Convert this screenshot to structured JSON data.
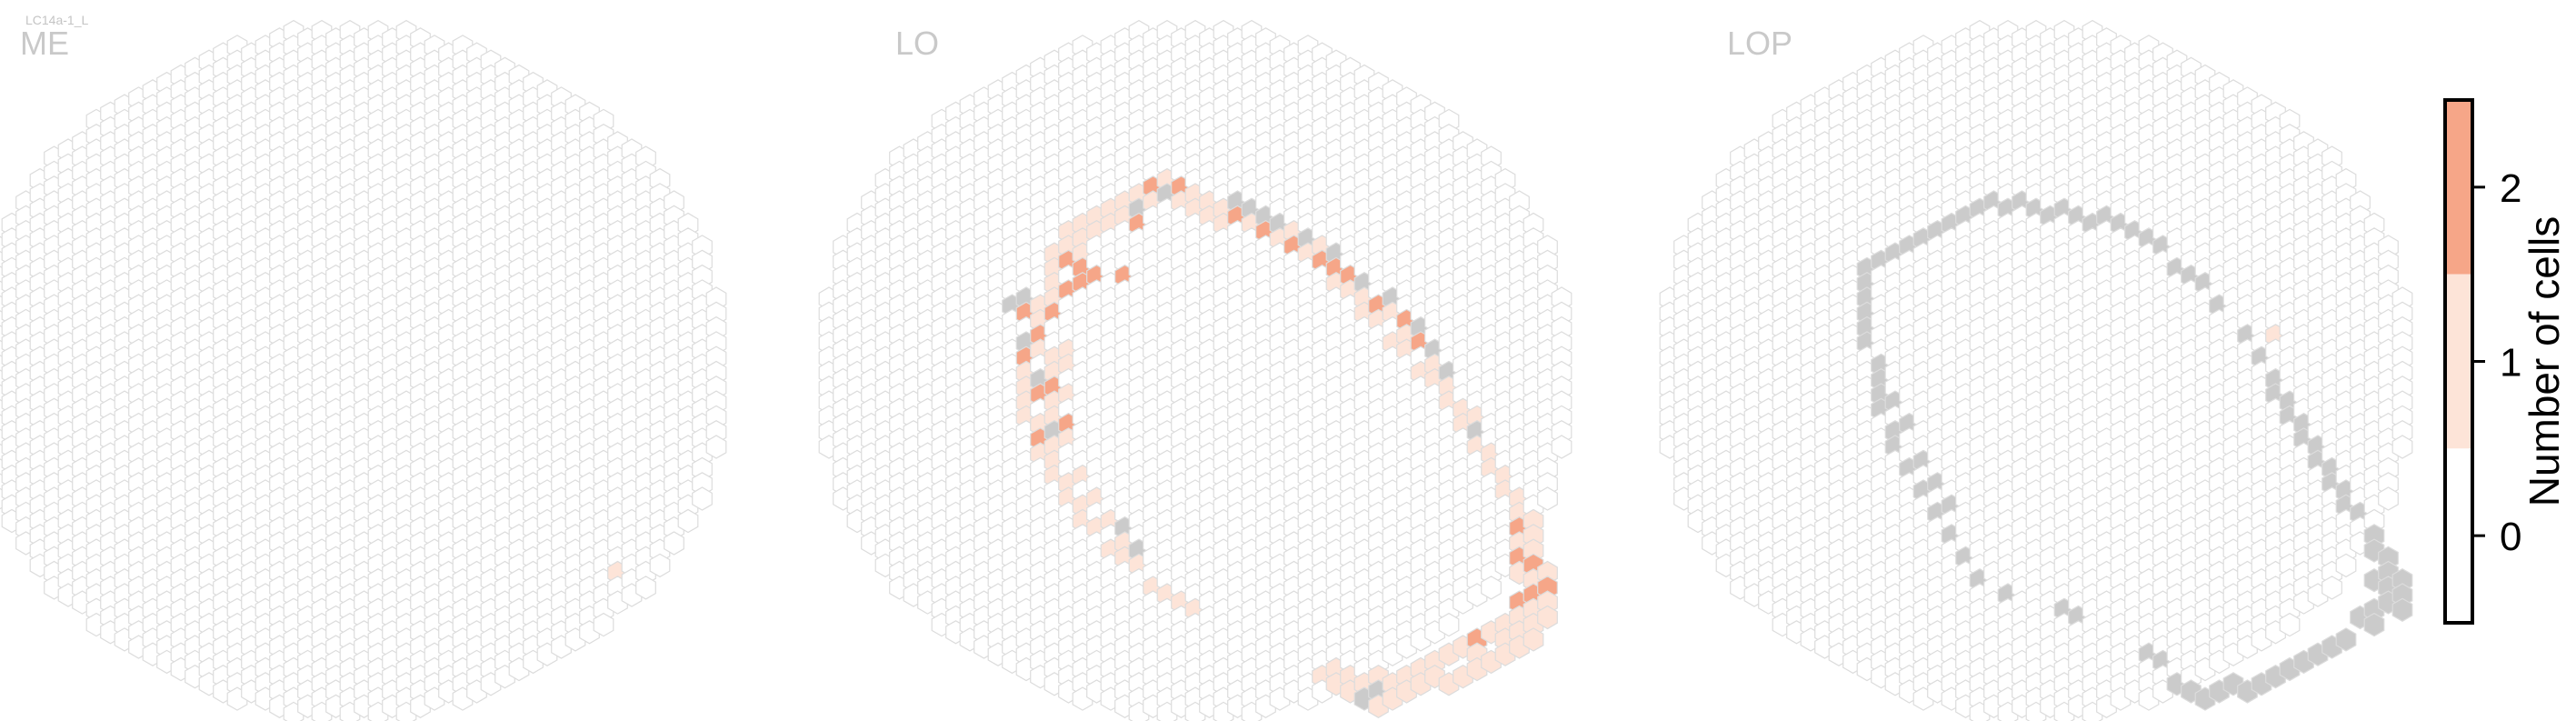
{
  "header": {
    "tag": "LC14a-1_L"
  },
  "colors": {
    "bin0": "#ffffff",
    "bin1": "#fde4d8",
    "bin2": "#f6a688",
    "outOfRange": "#cbcbcb",
    "edge": "#dcdcdc"
  },
  "chart_data": {
    "type": "heatmap",
    "description_of_encoding": "hexagonal eye-map; count per column",
    "panels": [
      {
        "name": "ME",
        "cells_count_1": [
          [
            19,
            4
          ]
        ],
        "cells_count_2": [],
        "cells_gray": []
      },
      {
        "name": "LO",
        "cells_count_1": [
          [
            12,
            16
          ],
          [
            13,
            16
          ],
          [
            13,
            15
          ],
          [
            14,
            15
          ],
          [
            15,
            14
          ],
          [
            15,
            13
          ],
          [
            16,
            13
          ],
          [
            17,
            12
          ],
          [
            18,
            12
          ],
          [
            19,
            11
          ],
          [
            20,
            10
          ],
          [
            20,
            9
          ],
          [
            21,
            9
          ],
          [
            22,
            8
          ],
          [
            22,
            7
          ],
          [
            23,
            7
          ],
          [
            23,
            6
          ],
          [
            24,
            6
          ],
          [
            24,
            5
          ],
          [
            25,
            4
          ],
          [
            25,
            3
          ],
          [
            25,
            2
          ],
          [
            25,
            1
          ],
          [
            24,
            1
          ],
          [
            24,
            0
          ],
          [
            24,
            -1
          ],
          [
            24,
            -2
          ],
          [
            23,
            -2
          ],
          [
            23,
            -3
          ],
          [
            22,
            -4
          ],
          [
            21,
            -5
          ],
          [
            20,
            -6
          ],
          [
            20,
            -7
          ],
          [
            19,
            -7
          ],
          [
            18,
            -8
          ],
          [
            17,
            -9
          ],
          [
            16,
            -10
          ],
          [
            15,
            -10
          ],
          [
            14,
            -11
          ],
          [
            13,
            -11
          ],
          [
            12,
            -11
          ],
          [
            11,
            -12
          ],
          [
            10,
            -12
          ],
          [
            9,
            -13
          ],
          [
            8,
            -13
          ],
          [
            7,
            -13
          ],
          [
            6,
            -13
          ],
          [
            5,
            -13
          ],
          [
            4,
            -13
          ],
          [
            3,
            -13
          ],
          [
            2,
            -12
          ],
          [
            1,
            -12
          ],
          [
            0,
            -12
          ],
          [
            -1,
            -12
          ],
          [
            -2,
            -12
          ],
          [
            -3,
            -11
          ],
          [
            -4,
            -10
          ],
          [
            -5,
            -9
          ],
          [
            -6,
            -8
          ],
          [
            -7,
            -7
          ],
          [
            -8,
            -6
          ],
          [
            -9,
            -5
          ],
          [
            -9,
            -4
          ],
          [
            -10,
            -3
          ],
          [
            -10,
            -2
          ],
          [
            -10,
            -1
          ],
          [
            -10,
            0
          ],
          [
            -11,
            1
          ],
          [
            -11,
            2
          ],
          [
            -11,
            3
          ],
          [
            -11,
            4
          ],
          [
            -12,
            5
          ],
          [
            -12,
            6
          ],
          [
            -12,
            7
          ],
          [
            -12,
            8
          ],
          [
            -12,
            9
          ],
          [
            -11,
            9
          ],
          [
            -11,
            10
          ],
          [
            -11,
            11
          ],
          [
            -10,
            11
          ],
          [
            -10,
            12
          ],
          [
            -9,
            12
          ],
          [
            -9,
            13
          ],
          [
            -8,
            13
          ],
          [
            -8,
            14
          ],
          [
            -7,
            14
          ],
          [
            -6,
            15
          ],
          [
            -5,
            15
          ],
          [
            -4,
            15
          ],
          [
            -3,
            16
          ],
          [
            -2,
            16
          ],
          [
            -1,
            16
          ],
          [
            0,
            16
          ],
          [
            -9,
            6
          ],
          [
            -10,
            7
          ],
          [
            -10,
            8
          ],
          [
            -9,
            8
          ],
          [
            -9,
            9
          ],
          [
            -10,
            10
          ],
          [
            -8,
            11
          ],
          [
            -7,
            12
          ],
          [
            -6,
            13
          ],
          [
            -5,
            14
          ],
          [
            -4,
            14
          ],
          [
            -11,
            7
          ],
          [
            -10,
            5
          ],
          [
            -9,
            4
          ],
          [
            -9,
            3
          ],
          [
            -10,
            4
          ],
          [
            -8,
            -4
          ],
          [
            -8,
            -5
          ],
          [
            -7,
            -6
          ],
          [
            -6,
            -7
          ],
          [
            -5,
            -8
          ],
          [
            -4,
            -9
          ],
          [
            -3,
            -10
          ],
          [
            -2,
            -11
          ],
          [
            -1,
            -11
          ],
          [
            0,
            -11
          ],
          [
            1,
            -11
          ],
          [
            2,
            -11
          ],
          [
            3,
            -12
          ],
          [
            4,
            -12
          ],
          [
            5,
            -12
          ],
          [
            6,
            -12
          ],
          [
            7,
            -12
          ],
          [
            8,
            -12
          ],
          [
            9,
            -12
          ],
          [
            10,
            -11
          ],
          [
            11,
            -11
          ],
          [
            12,
            -10
          ],
          [
            13,
            -10
          ],
          [
            14,
            -9
          ],
          [
            15,
            -9
          ],
          [
            16,
            -8
          ],
          [
            17,
            -8
          ],
          [
            18,
            -7
          ],
          [
            19,
            -6
          ],
          [
            20,
            -5
          ],
          [
            21,
            -4
          ],
          [
            22,
            -3
          ],
          [
            23,
            -1
          ],
          [
            23,
            0
          ],
          [
            23,
            1
          ],
          [
            23,
            2
          ],
          [
            24,
            2
          ],
          [
            24,
            3
          ],
          [
            24,
            4
          ],
          [
            23,
            5
          ],
          [
            22,
            6
          ],
          [
            21,
            7
          ],
          [
            20,
            8
          ],
          [
            19,
            9
          ],
          [
            18,
            10
          ],
          [
            17,
            11
          ],
          [
            16,
            12
          ],
          [
            14,
            14
          ],
          [
            13,
            14
          ],
          [
            12,
            15
          ],
          [
            11,
            15
          ],
          [
            10,
            15
          ],
          [
            10,
            16
          ],
          [
            11,
            16
          ],
          [
            9,
            16
          ]
        ],
        "cells_count_2": [
          [
            20,
            8
          ],
          [
            23,
            4
          ],
          [
            24,
            3
          ],
          [
            25,
            2
          ],
          [
            24,
            1
          ],
          [
            23,
            1
          ],
          [
            23,
            -1
          ],
          [
            -9,
            8
          ],
          [
            -10,
            9
          ],
          [
            -11,
            10
          ],
          [
            -11,
            7
          ],
          [
            -10,
            6
          ],
          [
            -12,
            5
          ],
          [
            -11,
            3
          ],
          [
            -12,
            2
          ],
          [
            -10,
            1
          ],
          [
            -9,
            -1
          ],
          [
            -8,
            -2
          ],
          [
            -7,
            -3
          ],
          [
            -8,
            -3
          ],
          [
            -9,
            -3
          ],
          [
            -5,
            -4
          ],
          [
            -4,
            -8
          ],
          [
            -3,
            -11
          ],
          [
            -1,
            -12
          ],
          [
            3,
            -12
          ],
          [
            5,
            -12
          ],
          [
            7,
            -12
          ],
          [
            9,
            -12
          ],
          [
            10,
            -12
          ],
          [
            11,
            -12
          ],
          [
            13,
            -11
          ],
          [
            15,
            -11
          ],
          [
            16,
            -10
          ]
        ],
        "cells_gray": [
          [
            12,
            16
          ],
          [
            13,
            15
          ],
          [
            -4,
            14
          ],
          [
            -5,
            13
          ],
          [
            -10,
            9
          ],
          [
            -12,
            1
          ],
          [
            -13,
            2
          ],
          [
            -12,
            4
          ],
          [
            -11,
            6
          ],
          [
            -4,
            -9
          ],
          [
            -2,
            -11
          ],
          [
            3,
            -13
          ],
          [
            4,
            -13
          ],
          [
            5,
            -13
          ],
          [
            6,
            -13
          ],
          [
            8,
            -13
          ],
          [
            10,
            -13
          ],
          [
            12,
            -12
          ],
          [
            14,
            -12
          ],
          [
            16,
            -11
          ],
          [
            17,
            -10
          ],
          [
            18,
            -9
          ],
          [
            20,
            -6
          ]
        ]
      },
      {
        "name": "LOP",
        "cells_count_1": [
          [
            17,
            -11
          ]
        ],
        "cells_count_2": [],
        "cells_gray": [
          [
            8,
            15
          ],
          [
            9,
            15
          ],
          [
            10,
            16
          ],
          [
            11,
            16
          ],
          [
            12,
            16
          ],
          [
            13,
            15
          ],
          [
            14,
            14
          ],
          [
            15,
            14
          ],
          [
            16,
            13
          ],
          [
            17,
            12
          ],
          [
            18,
            11
          ],
          [
            19,
            10
          ],
          [
            20,
            9
          ],
          [
            21,
            8
          ],
          [
            22,
            7
          ],
          [
            23,
            5
          ],
          [
            24,
            4
          ],
          [
            25,
            3
          ],
          [
            25,
            2
          ],
          [
            25,
            1
          ],
          [
            25,
            0
          ],
          [
            24,
            -1
          ],
          [
            23,
            -2
          ],
          [
            22,
            -3
          ],
          [
            21,
            -4
          ],
          [
            20,
            -5
          ],
          [
            19,
            -6
          ],
          [
            18,
            -7
          ],
          [
            17,
            -8
          ],
          [
            16,
            -9
          ],
          [
            15,
            -10
          ],
          [
            13,
            -11
          ],
          [
            12,
            -12
          ],
          [
            11,
            -12
          ],
          [
            10,
            -12
          ],
          [
            9,
            -13
          ],
          [
            8,
            -13
          ],
          [
            7,
            -13
          ],
          [
            6,
            -13
          ],
          [
            5,
            -13
          ],
          [
            4,
            -12
          ],
          [
            3,
            -12
          ],
          [
            2,
            -12
          ],
          [
            1,
            -11
          ],
          [
            0,
            -11
          ],
          [
            -1,
            -11
          ],
          [
            -2,
            -10
          ],
          [
            -3,
            -10
          ],
          [
            -4,
            -9
          ],
          [
            -5,
            -8
          ],
          [
            -6,
            -7
          ],
          [
            -7,
            -6
          ],
          [
            -8,
            -5
          ],
          [
            -9,
            -4
          ],
          [
            -10,
            -3
          ],
          [
            -11,
            -2
          ],
          [
            -12,
            -1
          ],
          [
            -12,
            0
          ],
          [
            -12,
            1
          ],
          [
            -12,
            2
          ],
          [
            -12,
            3
          ],
          [
            -12,
            4
          ],
          [
            -11,
            5
          ],
          [
            -11,
            6
          ],
          [
            -11,
            7
          ],
          [
            -11,
            8
          ],
          [
            -10,
            9
          ],
          [
            -10,
            10
          ],
          [
            -9,
            11
          ],
          [
            -8,
            12
          ],
          [
            -7,
            13
          ],
          [
            -6,
            14
          ],
          [
            -5,
            15
          ],
          [
            -4,
            16
          ],
          [
            -2,
            16
          ],
          [
            2,
            15
          ],
          [
            3,
            15
          ],
          [
            -10,
            7
          ],
          [
            -9,
            8
          ],
          [
            -8,
            10
          ],
          [
            -7,
            11
          ],
          [
            -6,
            12
          ],
          [
            24,
            5
          ],
          [
            24,
            2
          ],
          [
            24,
            0
          ],
          [
            22,
            -2
          ],
          [
            21,
            -3
          ],
          [
            20,
            -4
          ],
          [
            19,
            -5
          ],
          [
            18,
            -6
          ],
          [
            17,
            -7
          ],
          [
            26,
            2
          ],
          [
            26,
            1
          ],
          [
            26,
            3
          ]
        ]
      }
    ],
    "colorbar": {
      "label": "Number of cells",
      "ticks": [
        "0",
        "1",
        "2"
      ],
      "bins": [
        0,
        1,
        2
      ],
      "range": [
        -0.5,
        2.5
      ]
    }
  }
}
